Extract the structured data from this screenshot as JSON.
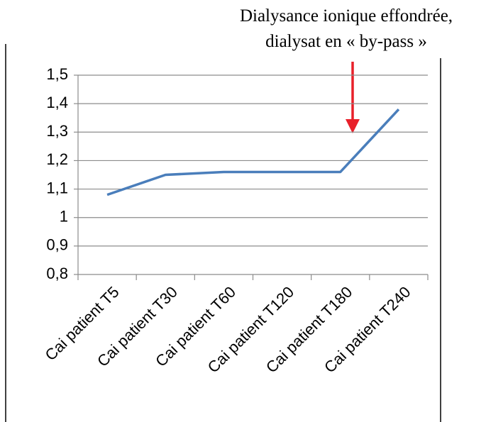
{
  "chart_data": {
    "type": "line",
    "annotation": [
      "Dialysance ionique effondrée,",
      "dialysat en « by-pass »"
    ],
    "categories": [
      "Cai patient T5",
      "Cai patient T30",
      "Cai patient T60",
      "Cai patient T120",
      "Cai patient T180",
      "Cai patient T240"
    ],
    "values": [
      1.08,
      1.15,
      1.16,
      1.16,
      1.16,
      1.38
    ],
    "color": "#4a7ebb",
    "ylim": [
      0.8,
      1.5
    ],
    "yticks": [
      {
        "value": 0.8,
        "label": "0,8"
      },
      {
        "value": 0.9,
        "label": "0,9"
      },
      1,
      {
        "value": 1.1,
        "label": "1,1"
      },
      {
        "value": 1.2,
        "label": "1,2"
      },
      {
        "value": 1.3,
        "label": "1,3"
      },
      {
        "value": 1.4,
        "label": "1,4"
      },
      {
        "value": 1.5,
        "label": "1,5"
      }
    ],
    "grid": true
  }
}
